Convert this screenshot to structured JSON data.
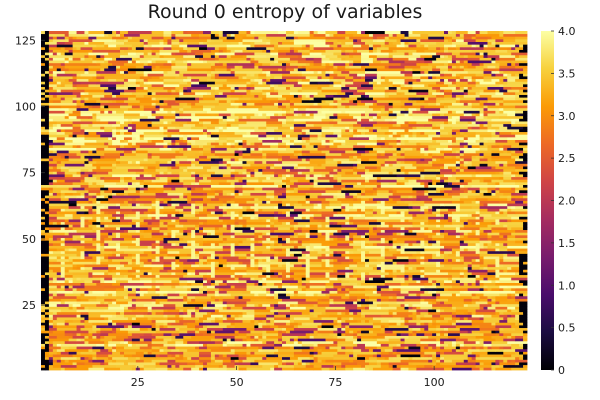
{
  "chart_data": {
    "type": "heatmap",
    "title": "Round 0 entropy of variables",
    "xlabel": "",
    "ylabel": "",
    "x_range": [
      0.5,
      123.5
    ],
    "y_range": [
      0.5,
      128.5
    ],
    "n_cols": 123,
    "n_rows": 128,
    "x_ticks": [
      25,
      50,
      75,
      100
    ],
    "y_ticks": [
      25,
      50,
      75,
      100,
      125
    ],
    "colorbar": {
      "min": 0,
      "max": 4,
      "ticks": [
        0,
        0.5,
        1.0,
        1.5,
        2.0,
        2.5,
        3.0,
        3.5,
        4.0
      ],
      "tick_labels": [
        "0",
        "0.5",
        "1.0",
        "1.5",
        "2.0",
        "2.5",
        "3.0",
        "3.5",
        "4.0"
      ],
      "colormap": "inferno",
      "stops": [
        "#000004",
        "#1b0c41",
        "#4a0c6b",
        "#781c6d",
        "#a52c60",
        "#cf4446",
        "#ed6925",
        "#fb9b06",
        "#f7d13d",
        "#fcffa4"
      ]
    },
    "value_distribution": {
      "typical_range": [
        2.6,
        4.0
      ],
      "occasional_low_values": [
        0.0,
        1.5
      ],
      "edge_columns_low": [
        1,
        2,
        122,
        123
      ],
      "high_band_rows": [
        36,
        64
      ],
      "high_band_columns": [
        6,
        11,
        15,
        20,
        25,
        30,
        34,
        39,
        44,
        49,
        54,
        58,
        63,
        68,
        73,
        78,
        82,
        87,
        92,
        97,
        101,
        106,
        111,
        116
      ],
      "faint_band_rows": [
        86,
        98
      ]
    },
    "grid": false,
    "legend": "colorbar-right"
  }
}
